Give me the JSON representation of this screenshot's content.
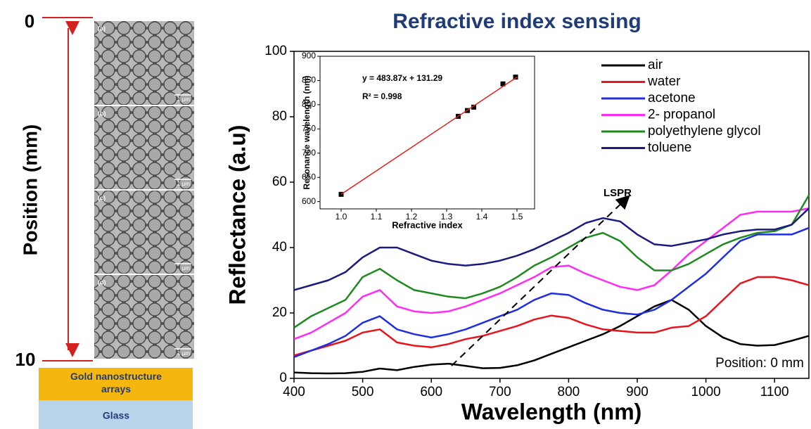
{
  "left_panel": {
    "axis_label": "Position (mm)",
    "top_label": "0",
    "bottom_label": "10",
    "images": [
      {
        "label": "(a)",
        "scale": "1 µm"
      },
      {
        "label": "(b)",
        "scale": "1 µm"
      },
      {
        "label": "(c)",
        "scale": "µm"
      },
      {
        "label": "(d)",
        "scale": "1 µm"
      }
    ],
    "layers": [
      "Gold nanostructure arrays",
      "Glass"
    ]
  },
  "chart_data": [
    {
      "type": "line",
      "title": "Refractive index sensing",
      "xlabel": "Wavelength (nm)",
      "ylabel": "Reflectance (a.u)",
      "x": [
        400,
        425,
        450,
        475,
        500,
        525,
        550,
        575,
        600,
        625,
        650,
        675,
        700,
        725,
        750,
        775,
        800,
        825,
        850,
        875,
        900,
        925,
        950,
        975,
        1000,
        1025,
        1050,
        1075,
        1100,
        1125,
        1150
      ],
      "series": [
        {
          "name": "air",
          "color": "#000000",
          "values": [
            1.8,
            1.6,
            1.5,
            1.6,
            2,
            3,
            2.5,
            3.5,
            4.2,
            4.5,
            3.8,
            3.1,
            3.2,
            4,
            5.5,
            7.5,
            9.5,
            11.5,
            13.5,
            16,
            19,
            22,
            24,
            21,
            16,
            12.5,
            10.5,
            10,
            10.2,
            11.5,
            13
          ]
        },
        {
          "name": "water",
          "color": "#e8141b",
          "values": [
            7,
            8.5,
            10,
            11.5,
            14,
            15,
            11,
            10,
            9.5,
            10.5,
            12,
            13,
            14.5,
            16,
            18,
            19.2,
            18.5,
            16.5,
            15,
            14.5,
            14,
            14,
            15.5,
            16,
            19,
            24,
            29,
            31,
            31,
            30,
            28.5
          ]
        },
        {
          "name": "acetone",
          "color": "#1f2fe0",
          "values": [
            6.5,
            8.5,
            10.5,
            13,
            17,
            19,
            15,
            13.5,
            12.5,
            13.5,
            15,
            17,
            19,
            21,
            24,
            26,
            25.5,
            23,
            21,
            20,
            19.5,
            21,
            24,
            28,
            32,
            37,
            42,
            44,
            44,
            44,
            46
          ]
        },
        {
          "name": "2- propanol",
          "color": "#ff2cf5",
          "values": [
            12,
            14,
            17,
            20,
            25,
            27,
            22,
            20.5,
            20,
            20.5,
            22,
            24,
            26,
            28.5,
            31,
            34,
            34.5,
            32,
            30,
            28,
            27,
            28.5,
            33,
            38,
            42,
            46,
            50,
            51,
            51,
            51,
            52
          ]
        },
        {
          "name": "polyethylene glycol",
          "color": "#1e8a1e",
          "values": [
            15.5,
            19,
            21.5,
            24,
            31,
            33.5,
            30,
            27,
            26,
            25,
            24.5,
            26,
            28,
            31,
            34.5,
            37,
            40,
            43,
            44.5,
            42,
            37,
            33,
            33,
            35,
            38,
            41,
            43,
            44.5,
            45,
            47,
            56
          ]
        },
        {
          "name": "toluene",
          "color": "#1a1a80",
          "values": [
            27,
            28.5,
            30,
            32.5,
            37,
            40,
            40,
            38,
            36,
            35,
            34.5,
            35,
            36,
            37.5,
            39.5,
            42,
            44.5,
            47.5,
            49,
            48,
            44,
            41,
            40.5,
            41.5,
            42.5,
            44,
            45,
            45.5,
            45.5,
            47,
            52
          ]
        }
      ],
      "xlim": [
        400,
        1150
      ],
      "xticks": [
        400,
        500,
        600,
        700,
        800,
        900,
        1000,
        1100
      ],
      "ylim": [
        0,
        100
      ],
      "yticks": [
        0,
        20,
        40,
        60,
        80,
        100
      ],
      "legend": "upper right",
      "annotations": [
        "LSPR",
        "Position: 0 mm"
      ]
    },
    {
      "type": "scatter",
      "xlabel": "Refractive index",
      "ylabel": "Resonance wavelength (nm)",
      "series": [
        {
          "mode": "markers",
          "color": "#000000",
          "x": [
            1.0,
            1.333,
            1.359,
            1.377,
            1.46,
            1.496
          ],
          "values": [
            615,
            776,
            788,
            795,
            843,
            857
          ]
        },
        {
          "mode": "line",
          "color": "#e0201b",
          "x": [
            1.0,
            1.5
          ],
          "values": [
            615,
            857
          ]
        }
      ],
      "xlim": [
        0.94,
        1.55
      ],
      "xticks": [
        {
          "value": 1,
          "label": "1.0"
        },
        1.1,
        1.2,
        1.3,
        1.4,
        1.5
      ],
      "ylim": [
        585,
        900
      ],
      "yticks": [
        600,
        650,
        700,
        750,
        800,
        850,
        900
      ],
      "annotations": [
        "y = 483.87x + 131.29",
        "R² = 0.998"
      ]
    }
  ]
}
